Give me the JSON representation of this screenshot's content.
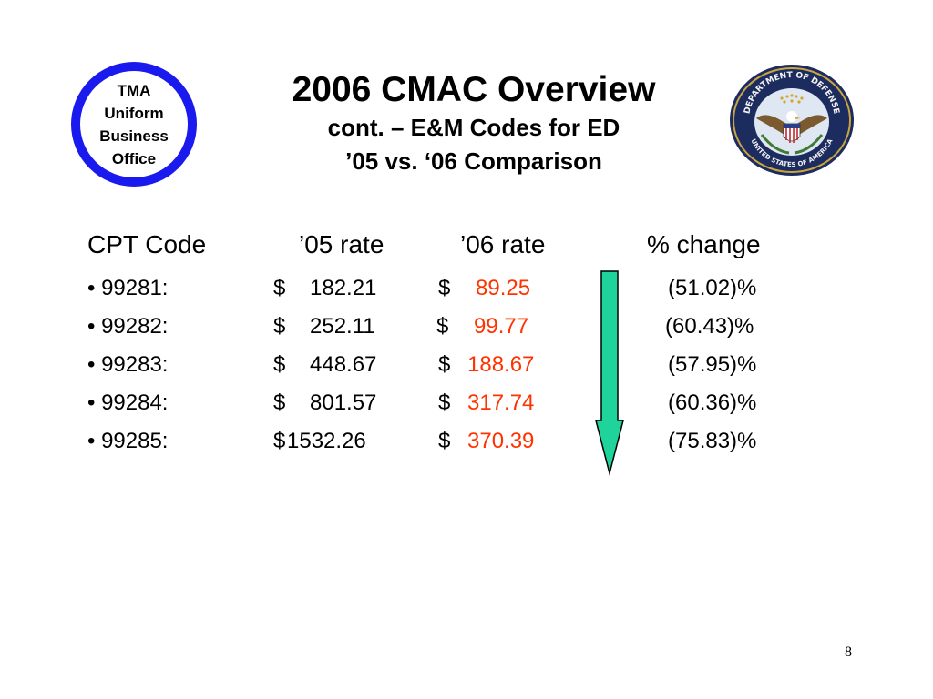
{
  "slide": {
    "title": "2006 CMAC Overview",
    "subtitle_lines": [
      "cont. – E&M Codes for ED",
      "’05 vs. ‘06 Comparison"
    ],
    "page_number": "8"
  },
  "logos": {
    "tma": {
      "lines": [
        "TMA",
        "Uniform",
        "Business",
        "Office"
      ],
      "ring_color": "#1a1aee"
    },
    "dod": {
      "ring_text_top": "DEPARTMENT OF DEFENSE",
      "ring_text_bottom": "UNITED STATES OF AMERICA"
    }
  },
  "table": {
    "headers": [
      "CPT Code",
      "’05 rate",
      "’06 rate",
      "% change"
    ],
    "rows": [
      {
        "code": "• 99281:",
        "dollar05": "$",
        "rate05": "182.21",
        "dollar06": "$",
        "rate06": "89.25",
        "change": "(51.02)%"
      },
      {
        "code": "• 99282:",
        "dollar05": "$",
        "rate05": "252.11",
        "dollar06": "$",
        "rate06": "99.77",
        "change": "(60.43)%"
      },
      {
        "code": "• 99283:",
        "dollar05": "$",
        "rate05": "448.67",
        "dollar06": "$",
        "rate06": "188.67",
        "change": "(57.95)%"
      },
      {
        "code": "• 99284:",
        "dollar05": "$",
        "rate05": "801.57",
        "dollar06": "$",
        "rate06": "317.74",
        "change": "(60.36)%"
      },
      {
        "code": "• 99285:",
        "dollar05": "$",
        "rate05": "1532.26",
        "dollar06": "$",
        "rate06": "370.39",
        "change": "(75.83)%"
      }
    ]
  },
  "colors": {
    "new_rate": "#ff3300",
    "arrow_fill": "#1fd49a",
    "arrow_stroke": "#000000"
  },
  "icons": {
    "arrow": "down-arrow-icon"
  }
}
